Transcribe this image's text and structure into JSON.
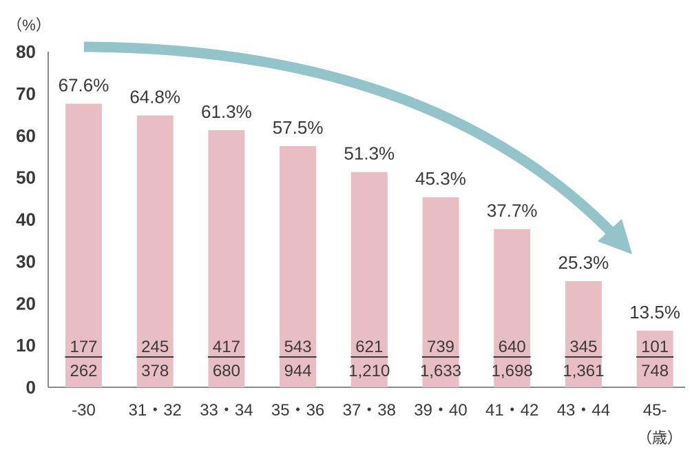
{
  "chart_data": {
    "type": "bar",
    "y_unit_label": "（%）",
    "x_unit_label": "（歳）",
    "ylim": [
      0,
      80
    ],
    "yticks": [
      "0",
      "10",
      "20",
      "30",
      "40",
      "50",
      "60",
      "70",
      "80"
    ],
    "categories": [
      "-30",
      "31・32",
      "33・34",
      "35・36",
      "37・38",
      "39・40",
      "41・42",
      "43・44",
      "45-"
    ],
    "values": [
      67.6,
      64.8,
      61.3,
      57.5,
      51.3,
      45.3,
      37.7,
      25.3,
      13.5
    ],
    "value_labels": [
      "67.6%",
      "64.8%",
      "61.3%",
      "57.5%",
      "51.3%",
      "45.3%",
      "37.7%",
      "25.3%",
      "13.5%"
    ],
    "numerators": [
      "177",
      "245",
      "417",
      "543",
      "621",
      "739",
      "640",
      "345",
      "101"
    ],
    "denominators": [
      "262",
      "378",
      "680",
      "944",
      "1,210",
      "1,633",
      "1,698",
      "1,361",
      "748"
    ],
    "grid": false,
    "legend": "none",
    "colors": {
      "bar": "#e8bec4",
      "arrow": "#92c4c9",
      "axis": "#8a8a8a",
      "text": "#3a3a3a"
    }
  }
}
